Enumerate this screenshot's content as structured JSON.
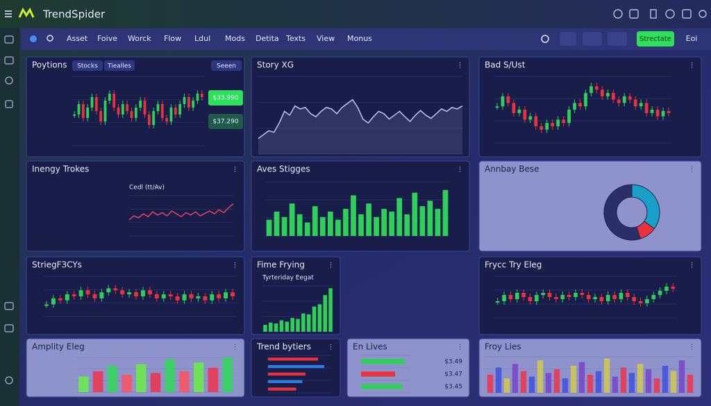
{
  "header": {
    "brand": "TrendSpider"
  },
  "menu": [
    "Asset",
    "Foive",
    "Worck",
    "Flow",
    "Ldul",
    "Mods",
    "Detita",
    "Texts",
    "View",
    "Monus"
  ],
  "button": "Strectate",
  "account": "Eoi",
  "panels": [
    {
      "title": "Poytions",
      "tabs": [
        "Stocks",
        "Tiealles",
        "Seeen"
      ],
      "badges": [
        "$33.990",
        "$37.290"
      ],
      "chart": {
        "type": "candle",
        "ylim": [
          0,
          100
        ],
        "values": [
          45,
          60,
          40,
          55,
          70,
          50,
          35,
          65,
          75,
          55,
          45,
          60,
          50,
          40,
          55,
          65,
          45,
          30,
          50,
          60,
          40,
          35,
          55,
          45,
          60,
          70,
          55,
          65,
          75,
          70
        ]
      }
    },
    {
      "title": "Story XG",
      "chart": {
        "type": "area",
        "color": "#b7bfe8",
        "ylim": [
          0,
          100
        ],
        "values": [
          20,
          25,
          30,
          28,
          40,
          55,
          50,
          62,
          58,
          60,
          52,
          48,
          55,
          60,
          58,
          52,
          60,
          65,
          70,
          60,
          45,
          40,
          48,
          55,
          52,
          45,
          50,
          55,
          48,
          42,
          50,
          56,
          50,
          46,
          52,
          58,
          55,
          60,
          58,
          62
        ]
      }
    },
    {
      "title": "Bad S/Ust",
      "chart": {
        "type": "candle",
        "ylim": [
          0,
          100
        ],
        "values": [
          55,
          70,
          60,
          45,
          50,
          35,
          40,
          25,
          20,
          30,
          25,
          35,
          30,
          50,
          60,
          55,
          75,
          85,
          80,
          70,
          75,
          65,
          60,
          70,
          65,
          55,
          60,
          45,
          50,
          40,
          48,
          45
        ]
      }
    },
    {
      "title": "Inengy Trokes",
      "subtitle": "Cedl (tt/Av)",
      "chart": {
        "type": "line",
        "color": "#e0415e",
        "ylim": [
          0,
          100
        ],
        "values": [
          40,
          50,
          45,
          55,
          48,
          60,
          52,
          58,
          50,
          62,
          55,
          48,
          58,
          52,
          60,
          50,
          56,
          62,
          55,
          65,
          58,
          70,
          80
        ]
      }
    },
    {
      "title": "Aves Stigges",
      "chart": {
        "type": "bar",
        "colors": [
          "#2fd05a"
        ],
        "ylim": [
          0,
          100
        ],
        "values": [
          30,
          45,
          35,
          60,
          40,
          25,
          55,
          35,
          45,
          30,
          50,
          75,
          40,
          60,
          35,
          50,
          45,
          70,
          40,
          80,
          55,
          65,
          50,
          85
        ]
      }
    },
    {
      "title": "Annbay Bese",
      "chart": {
        "type": "donut",
        "colors": [
          "#18a0c8",
          "#e8323c",
          "#2a2f6a"
        ],
        "values": [
          35,
          10,
          55
        ]
      }
    },
    {
      "title": "StriegFЗCYs",
      "chart": {
        "type": "candle",
        "ylim": [
          0,
          100
        ],
        "values": [
          30,
          45,
          40,
          55,
          50,
          65,
          55,
          45,
          60,
          70,
          65,
          55,
          60,
          50,
          65,
          55,
          45,
          55,
          50,
          40,
          55,
          45,
          50,
          40,
          55,
          45,
          60,
          50
        ]
      }
    },
    {
      "title": "Fime Frying",
      "subtitle": "Tyrteriday Eegat",
      "chart": {
        "type": "bar",
        "colors": [
          "#2fd05a"
        ],
        "ylim": [
          0,
          100
        ],
        "values": [
          15,
          20,
          18,
          25,
          22,
          30,
          28,
          40,
          38,
          55,
          60,
          80,
          95
        ]
      }
    },
    {
      "title": "Frycc Try Eleg",
      "chart": {
        "type": "candle",
        "ylim": [
          0,
          100
        ],
        "values": [
          40,
          55,
          45,
          60,
          50,
          40,
          55,
          60,
          50,
          45,
          55,
          50,
          60,
          55,
          45,
          50,
          40,
          55,
          45,
          60,
          50,
          40,
          35,
          45,
          55,
          65,
          75,
          70
        ]
      }
    },
    {
      "title": "Amplity Eleg",
      "chart": {
        "type": "bar",
        "colors": [
          "#6fe05a",
          "#e0415e",
          "#3fcf6a",
          "#ef5b6e"
        ],
        "ylim": [
          0,
          100
        ],
        "values": [
          45,
          60,
          75,
          50,
          80,
          55,
          95,
          60,
          85,
          70,
          100
        ]
      }
    },
    {
      "title": "Trend bytiers",
      "chart": {
        "type": "hbar",
        "colors": [
          "#e8323c",
          "#2f7fe0"
        ],
        "ylim": [
          0,
          100
        ],
        "values": [
          80,
          90,
          60,
          55,
          45
        ]
      }
    },
    {
      "title": "En Lives",
      "rows": [
        "$3.49",
        "$3.47",
        "$3.45"
      ],
      "chart": {
        "type": "hbar",
        "colors": [
          "#2fd05a",
          "#e8323c",
          "#2fd05a"
        ],
        "ylim": [
          0,
          100
        ],
        "values": [
          90,
          70,
          85
        ]
      }
    },
    {
      "title": "Froy Lies",
      "chart": {
        "type": "bar",
        "colors": [
          "#e0415e",
          "#4a5ad8",
          "#c9c060",
          "#7a50c8"
        ],
        "ylim": [
          0,
          100
        ],
        "values": [
          50,
          70,
          40,
          80,
          60,
          45,
          90,
          55,
          65,
          40,
          75,
          85,
          50,
          60,
          95,
          45,
          70,
          55,
          80,
          65,
          40,
          75,
          60,
          90,
          50
        ]
      }
    }
  ]
}
